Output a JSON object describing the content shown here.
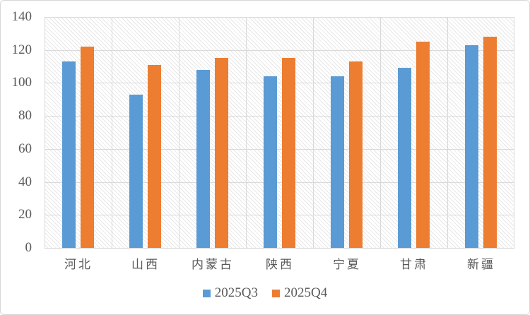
{
  "chart_data": {
    "type": "bar",
    "title": "",
    "xlabel": "",
    "ylabel": "",
    "categories": [
      "河北",
      "山西",
      "内蒙古",
      "陕西",
      "宁夏",
      "甘肃",
      "新疆"
    ],
    "series": [
      {
        "name": "2025Q3",
        "color": "#5B9BD5",
        "values": [
          113,
          93,
          108,
          104,
          104,
          109,
          123
        ]
      },
      {
        "name": "2025Q4",
        "color": "#ED7D31",
        "values": [
          122,
          111,
          115,
          115,
          113,
          125,
          128
        ]
      }
    ],
    "ylim": [
      0,
      140
    ],
    "ytick_step": 20,
    "ytick_labels": [
      "0",
      "20",
      "40",
      "60",
      "80",
      "100",
      "120",
      "140"
    ],
    "grid": "horizontal-and-vertical",
    "plot_background": "light-downward-diagonal-hatch",
    "legend_position": "bottom",
    "colors": {
      "gridline": "#d9d9d9",
      "axis_text": "#595959",
      "chart_border": "#d7d7d7",
      "background": "#ffffff"
    }
  }
}
